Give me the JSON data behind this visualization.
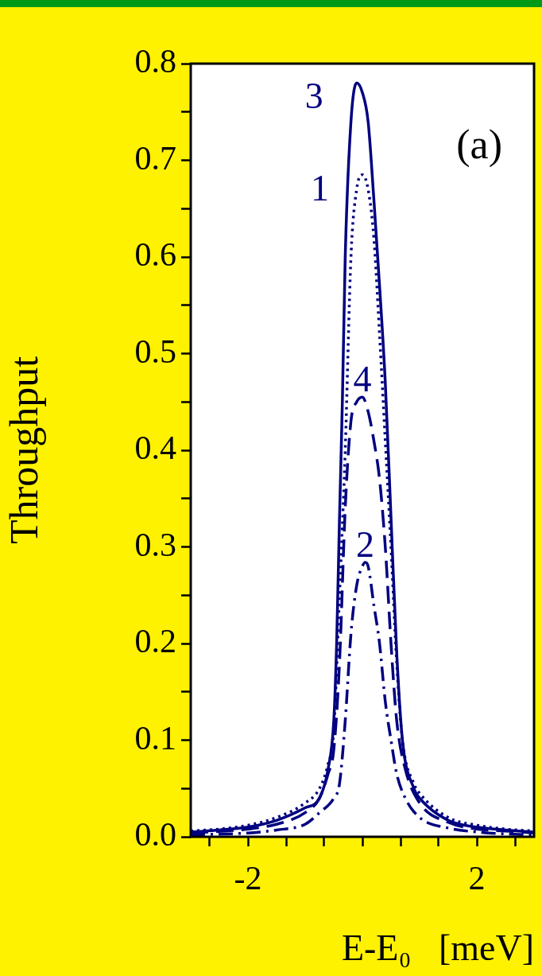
{
  "chart_data": {
    "type": "line",
    "xlabel": "E-E₀   [meV]",
    "ylabel": "Throughput",
    "annotations": [
      "(a)"
    ],
    "xlim": [
      -3,
      3
    ],
    "xticks": [
      {
        "value": -2.67,
        "label": null
      },
      -2,
      {
        "value": -1.33,
        "label": null
      },
      {
        "value": -0.67,
        "label": null
      },
      {
        "value": 0,
        "label": null
      },
      {
        "value": 0.67,
        "label": null
      },
      {
        "value": 1.33,
        "label": null
      },
      2,
      {
        "value": 2.67,
        "label": null
      }
    ],
    "ylim": [
      0,
      0.8
    ],
    "yticks": [
      {
        "value": 0,
        "label": "0.0"
      },
      {
        "value": 0.05,
        "label": null
      },
      0.1,
      {
        "value": 0.15,
        "label": null
      },
      0.2,
      {
        "value": 0.25,
        "label": null
      },
      0.3,
      {
        "value": 0.35,
        "label": null
      },
      0.4,
      {
        "value": 0.45,
        "label": null
      },
      0.5,
      {
        "value": 0.55,
        "label": null
      },
      0.6,
      {
        "value": 0.65,
        "label": null
      },
      0.7,
      {
        "value": 0.75,
        "label": null
      },
      0.8
    ],
    "legend": false,
    "grid": false,
    "series": [
      {
        "name": "3",
        "color": "#000080",
        "line_style": "solid",
        "x": [
          -3,
          -2.5,
          -2,
          -1.5,
          -1,
          -0.75,
          -0.6,
          -0.5,
          -0.45,
          -0.4,
          -0.35,
          -0.3,
          -0.2,
          -0.1,
          0,
          0.1,
          0.2,
          0.3,
          0.4,
          0.5,
          0.6,
          0.7,
          0.9,
          1,
          1.5,
          2,
          2.5,
          3
        ],
        "values": [
          0.005,
          0.007,
          0.01,
          0.017,
          0.03,
          0.04,
          0.07,
          0.12,
          0.2,
          0.33,
          0.45,
          0.6,
          0.74,
          0.78,
          0.77,
          0.74,
          0.66,
          0.57,
          0.47,
          0.33,
          0.19,
          0.1,
          0.05,
          0.04,
          0.017,
          0.01,
          0.007,
          0.005
        ]
      },
      {
        "name": "1",
        "color": "#000080",
        "line_style": "dotted",
        "x": [
          -3,
          -2.5,
          -2,
          -1.5,
          -1,
          -0.75,
          -0.6,
          -0.5,
          -0.4,
          -0.3,
          -0.2,
          -0.1,
          0,
          0.1,
          0.2,
          0.3,
          0.4,
          0.5,
          0.6,
          0.7,
          0.9,
          1,
          1.5,
          2,
          2.5,
          3
        ],
        "values": [
          0.006,
          0.008,
          0.012,
          0.02,
          0.035,
          0.05,
          0.075,
          0.11,
          0.25,
          0.4,
          0.6,
          0.67,
          0.685,
          0.67,
          0.62,
          0.52,
          0.41,
          0.3,
          0.18,
          0.1,
          0.055,
          0.045,
          0.02,
          0.012,
          0.008,
          0.006
        ]
      },
      {
        "name": "4",
        "color": "#000080",
        "line_style": "dashed",
        "x": [
          -3,
          -2,
          -1.5,
          -1,
          -0.75,
          -0.6,
          -0.5,
          -0.4,
          -0.3,
          -0.2,
          -0.1,
          0,
          0.1,
          0.2,
          0.3,
          0.4,
          0.5,
          0.6,
          0.75,
          1,
          1.5,
          2,
          2.5,
          3
        ],
        "values": [
          0.004,
          0.008,
          0.013,
          0.025,
          0.04,
          0.065,
          0.09,
          0.18,
          0.34,
          0.43,
          0.45,
          0.455,
          0.44,
          0.41,
          0.37,
          0.3,
          0.2,
          0.12,
          0.07,
          0.035,
          0.015,
          0.008,
          0.006,
          0.004
        ]
      },
      {
        "name": "2",
        "color": "#000080",
        "line_style": "dashdot",
        "x": [
          -3,
          -2,
          -1.5,
          -1,
          -0.75,
          -0.5,
          -0.4,
          -0.3,
          -0.2,
          -0.1,
          0,
          0.05,
          0.1,
          0.2,
          0.3,
          0.4,
          0.5,
          0.6,
          0.75,
          1,
          1.5,
          2,
          2.5,
          3
        ],
        "values": [
          0.002,
          0.004,
          0.007,
          0.013,
          0.025,
          0.04,
          0.055,
          0.12,
          0.21,
          0.26,
          0.28,
          0.284,
          0.28,
          0.24,
          0.2,
          0.14,
          0.1,
          0.065,
          0.04,
          0.02,
          0.009,
          0.005,
          0.003,
          0.002
        ]
      }
    ]
  }
}
